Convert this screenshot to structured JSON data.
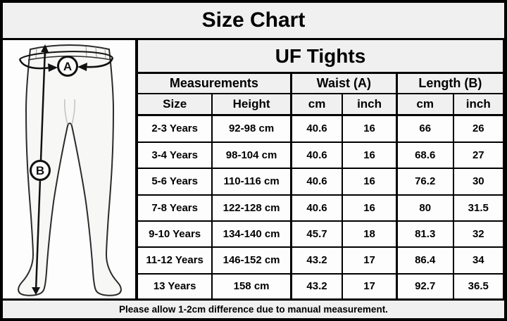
{
  "title": "Size Chart",
  "table": {
    "product": "UF Tights",
    "group_headers": [
      {
        "label": "Measurements"
      },
      {
        "label": "Waist (A)"
      },
      {
        "label": "Length (B)"
      }
    ],
    "columns": [
      "Size",
      "Height",
      "cm",
      "inch",
      "cm",
      "inch"
    ],
    "rows": [
      [
        "2-3 Years",
        "92-98 cm",
        "40.6",
        "16",
        "66",
        "26"
      ],
      [
        "3-4 Years",
        "98-104 cm",
        "40.6",
        "16",
        "68.6",
        "27"
      ],
      [
        "5-6 Years",
        "110-116 cm",
        "40.6",
        "16",
        "76.2",
        "30"
      ],
      [
        "7-8 Years",
        "122-128 cm",
        "40.6",
        "16",
        "80",
        "31.5"
      ],
      [
        "9-10 Years",
        "134-140 cm",
        "45.7",
        "18",
        "81.3",
        "32"
      ],
      [
        "11-12 Years",
        "146-152 cm",
        "43.2",
        "17",
        "86.4",
        "34"
      ],
      [
        "13 Years",
        "158 cm",
        "43.2",
        "17",
        "92.7",
        "36.5"
      ]
    ]
  },
  "illustration": {
    "waist_label": "A",
    "length_label": "B"
  },
  "footer": {
    "note": "Please allow 1-2cm difference due to manual measurement."
  },
  "colors": {
    "border": "#000000",
    "header_bg": "#f0f0f0",
    "cell_bg": "#fdfdfd",
    "line": "#1a1a1a"
  }
}
